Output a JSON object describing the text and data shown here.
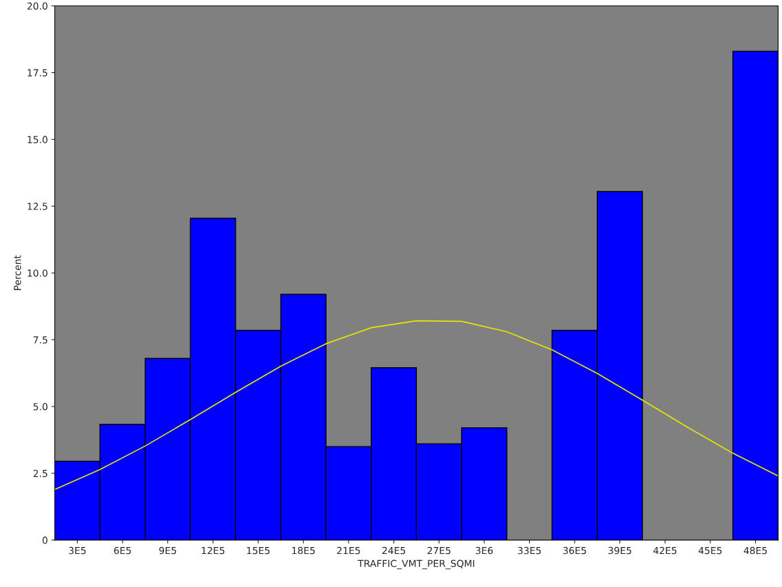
{
  "chart_data": {
    "type": "histogram",
    "xlabel": "TRAFFIC_VMT_PER_SQMI",
    "ylabel": "Percent",
    "bins": [
      150000,
      450000,
      750000,
      1050000,
      1350000,
      1650000,
      1950000,
      2250000,
      2550000,
      2850000,
      3150000,
      3450000,
      3750000,
      4050000,
      4350000,
      4650000,
      4950000
    ],
    "values": [
      2.95,
      4.33,
      6.8,
      12.05,
      7.85,
      9.2,
      3.5,
      6.45,
      3.6,
      4.2,
      0,
      7.85,
      13.05,
      0,
      0,
      18.3
    ],
    "color": "#0000ff",
    "series": [
      {
        "type": "line",
        "color": "#e6e600",
        "x": [
          150000,
          450000,
          750000,
          1050000,
          1350000,
          1650000,
          1950000,
          2250000,
          2550000,
          2850000,
          3150000,
          3450000,
          3750000,
          4050000,
          4350000,
          4650000,
          4950000
        ],
        "values": [
          1.89,
          2.64,
          3.52,
          4.51,
          5.53,
          6.51,
          7.35,
          7.95,
          8.21,
          8.19,
          7.8,
          7.12,
          6.24,
          5.24,
          4.22,
          3.25,
          2.4
        ]
      }
    ],
    "xlim": [
      150000,
      4950000
    ],
    "xticks": [
      {
        "value": 300000,
        "label": "3E5"
      },
      {
        "value": 600000,
        "label": "6E5"
      },
      {
        "value": 900000,
        "label": "9E5"
      },
      {
        "value": 1200000,
        "label": "12E5"
      },
      {
        "value": 1500000,
        "label": "15E5"
      },
      {
        "value": 1800000,
        "label": "18E5"
      },
      {
        "value": 2100000,
        "label": "21E5"
      },
      {
        "value": 2400000,
        "label": "24E5"
      },
      {
        "value": 2700000,
        "label": "27E5"
      },
      {
        "value": 3000000,
        "label": "3E6"
      },
      {
        "value": 3300000,
        "label": "33E5"
      },
      {
        "value": 3600000,
        "label": "36E5"
      },
      {
        "value": 3900000,
        "label": "39E5"
      },
      {
        "value": 4200000,
        "label": "42E5"
      },
      {
        "value": 4500000,
        "label": "45E5"
      },
      {
        "value": 4800000,
        "label": "48E5"
      }
    ],
    "ylim": [
      0,
      20
    ],
    "yticks": [
      0,
      {
        "value": 2.5,
        "label": "2.5"
      },
      {
        "value": 5,
        "label": "5.0"
      },
      {
        "value": 7.5,
        "label": "7.5"
      },
      {
        "value": 10,
        "label": "10.0"
      },
      {
        "value": 12.5,
        "label": "12.5"
      },
      {
        "value": 15,
        "label": "15.0"
      },
      {
        "value": 17.5,
        "label": "17.5"
      },
      {
        "value": 20,
        "label": "20.0"
      }
    ],
    "grid": false,
    "legend": false
  }
}
